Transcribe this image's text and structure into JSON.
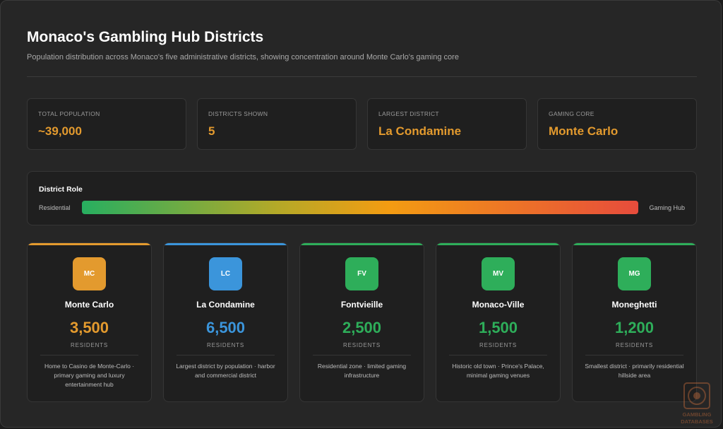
{
  "header": {
    "title": "Monaco's Gambling Hub Districts",
    "subtitle": "Population distribution across Monaco's five administrative districts, showing concentration around Monte Carlo's gaming core"
  },
  "stats": [
    {
      "label": "TOTAL POPULATION",
      "value": "~39,000"
    },
    {
      "label": "DISTRICTS SHOWN",
      "value": "5"
    },
    {
      "label": "LARGEST DISTRICT",
      "value": "La Condamine"
    },
    {
      "label": "GAMING CORE",
      "value": "Monte Carlo"
    }
  ],
  "accent_color": "#e39a2e",
  "role_scale": {
    "title": "District Role",
    "left_label": "Residential",
    "right_label": "Gaming Hub",
    "gradient_colors": [
      "#27ae60",
      "#f39c12",
      "#e74c3c"
    ]
  },
  "districts": [
    {
      "abbr": "MC",
      "name": "Monte Carlo",
      "residents": "3,500",
      "residents_label": "RESIDENTS",
      "description": "Home to Casino de Monte-Carlo · primary gaming and luxury entertainment hub",
      "color": "#e39a2e"
    },
    {
      "abbr": "LC",
      "name": "La Condamine",
      "residents": "6,500",
      "residents_label": "RESIDENTS",
      "description": "Largest district by population · harbor and commercial district",
      "color": "#3b95db"
    },
    {
      "abbr": "FV",
      "name": "Fontvieille",
      "residents": "2,500",
      "residents_label": "RESIDENTS",
      "description": "Residential zone · limited gaming infrastructure",
      "color": "#2eae5a"
    },
    {
      "abbr": "MV",
      "name": "Monaco-Ville",
      "residents": "1,500",
      "residents_label": "RESIDENTS",
      "description": "Historic old town · Prince's Palace, minimal gaming venues",
      "color": "#2eae5a"
    },
    {
      "abbr": "MG",
      "name": "Moneghetti",
      "residents": "1,200",
      "residents_label": "RESIDENTS",
      "description": "Smallest district · primarily residential hillside area",
      "color": "#2eae5a"
    }
  ],
  "watermark": {
    "text": "GAMBLING DATABASES"
  }
}
